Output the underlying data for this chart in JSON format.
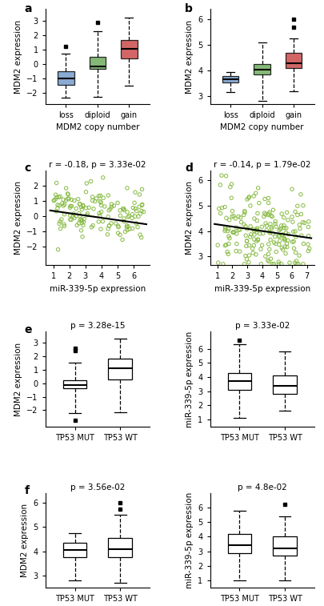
{
  "panel_a": {
    "xlabel": "MDM2 copy number",
    "ylabel": "MDM2 expression",
    "categories": [
      "loss",
      "diploid",
      "gain"
    ],
    "colors": [
      "#7099c8",
      "#6aaa5a",
      "#c84444"
    ],
    "boxes": [
      {
        "q1": -1.45,
        "median": -1.05,
        "q3": -0.55,
        "whislo": -2.35,
        "whishi": 0.7,
        "fliers": [
          1.2
        ]
      },
      {
        "q1": -0.35,
        "median": -0.2,
        "q3": 0.5,
        "whislo": -2.3,
        "whishi": 2.25,
        "fliers": [
          2.9
        ]
      },
      {
        "q1": 0.35,
        "median": 1.05,
        "q3": 1.65,
        "whislo": -1.5,
        "whishi": 3.2,
        "fliers": []
      }
    ],
    "ylim": [
      -2.8,
      3.8
    ],
    "yticks": [
      -2,
      -1,
      0,
      1,
      2,
      3
    ]
  },
  "panel_b": {
    "xlabel": "MDM2 copy number",
    "ylabel": "MDM2 expression",
    "categories": [
      "loss",
      "diploid",
      "gain"
    ],
    "colors": [
      "#7099c8",
      "#6aaa5a",
      "#c84444"
    ],
    "boxes": [
      {
        "q1": 3.55,
        "median": 3.65,
        "q3": 3.8,
        "whislo": 3.15,
        "whishi": 3.95,
        "fliers": []
      },
      {
        "q1": 3.85,
        "median": 4.05,
        "q3": 4.25,
        "whislo": 2.82,
        "whishi": 5.1,
        "fliers": []
      },
      {
        "q1": 4.1,
        "median": 4.3,
        "q3": 4.7,
        "whislo": 3.2,
        "whishi": 5.25,
        "fliers": [
          6.0,
          5.7
        ]
      }
    ],
    "ylim": [
      2.7,
      6.4
    ],
    "yticks": [
      3.0,
      4.0,
      5.0,
      6.0
    ]
  },
  "panel_c": {
    "title": "r = -0.18, p = 3.33e-02",
    "xlabel": "miR-339-5p expression",
    "ylabel": "MDM2 expression",
    "xlim": [
      0.5,
      7.0
    ],
    "ylim": [
      -3.2,
      3.0
    ],
    "xticks": [
      1,
      2,
      3,
      4,
      5,
      6
    ],
    "yticks": [
      -2,
      -1,
      0,
      1,
      2
    ],
    "line_x": [
      0.8,
      6.8
    ],
    "line_y": [
      0.38,
      -0.52
    ],
    "dot_color": "#aad66a",
    "dot_edge": "#88bb44"
  },
  "panel_d": {
    "title": "r = -0.14, p = 1.79e-02",
    "xlabel": "miR-339-5p expression",
    "ylabel": "MDM2 expression",
    "xlim": [
      0.5,
      7.5
    ],
    "ylim": [
      2.65,
      6.4
    ],
    "xticks": [
      1,
      2,
      3,
      4,
      5,
      6,
      7
    ],
    "yticks": [
      3.0,
      4.0,
      5.0,
      6.0
    ],
    "line_x": [
      0.8,
      7.3
    ],
    "line_y": [
      4.28,
      3.72
    ],
    "dot_color": "#aad66a",
    "dot_edge": "#88bb44"
  },
  "panel_e_left": {
    "title": "p = 3.28e-15",
    "xlabel": "",
    "ylabel": "MDM2 expression",
    "categories": [
      "TP53 MUT",
      "TP53 WT"
    ],
    "boxes": [
      {
        "q1": -0.35,
        "median": -0.15,
        "q3": 0.2,
        "whislo": -2.2,
        "whishi": 1.5,
        "fliers": [
          2.4,
          2.6,
          -2.75
        ]
      },
      {
        "q1": 0.3,
        "median": 1.1,
        "q3": 1.8,
        "whislo": -2.15,
        "whishi": 3.3,
        "fliers": []
      }
    ],
    "ylim": [
      -3.2,
      3.8
    ],
    "yticks": [
      -2,
      -1,
      0,
      1,
      2,
      3
    ]
  },
  "panel_e_right": {
    "title": "p = 3.33e-02",
    "xlabel": "",
    "ylabel": "miR-339-5p expression",
    "categories": [
      "TP53 MUT",
      "TP53 WT"
    ],
    "boxes": [
      {
        "q1": 3.1,
        "median": 3.7,
        "q3": 4.3,
        "whislo": 1.1,
        "whishi": 6.3,
        "fliers": [
          6.6
        ]
      },
      {
        "q1": 2.8,
        "median": 3.4,
        "q3": 4.1,
        "whislo": 1.6,
        "whishi": 5.8,
        "fliers": []
      }
    ],
    "ylim": [
      0.5,
      7.2
    ],
    "yticks": [
      1,
      2,
      3,
      4,
      5,
      6
    ]
  },
  "panel_f_left": {
    "title": "p = 3.56e-02",
    "xlabel": "",
    "ylabel": "MDM2 expression",
    "categories": [
      "TP53 MUT",
      "TP53 WT"
    ],
    "boxes": [
      {
        "q1": 3.75,
        "median": 4.05,
        "q3": 4.35,
        "whislo": 2.82,
        "whishi": 4.75,
        "fliers": []
      },
      {
        "q1": 3.75,
        "median": 4.1,
        "q3": 4.55,
        "whislo": 2.72,
        "whishi": 5.5,
        "fliers": [
          6.0,
          5.75
        ]
      }
    ],
    "ylim": [
      2.5,
      6.4
    ],
    "yticks": [
      3.0,
      4.0,
      5.0,
      6.0
    ]
  },
  "panel_f_right": {
    "title": "p = 4.8e-02",
    "xlabel": "",
    "ylabel": "miR-339-5p expression",
    "categories": [
      "TP53 MUT",
      "TP53 WT"
    ],
    "boxes": [
      {
        "q1": 2.9,
        "median": 3.4,
        "q3": 4.2,
        "whislo": 1.0,
        "whishi": 5.8,
        "fliers": []
      },
      {
        "q1": 2.7,
        "median": 3.2,
        "q3": 4.0,
        "whislo": 1.0,
        "whishi": 5.4,
        "fliers": [
          6.2
        ]
      }
    ],
    "ylim": [
      0.5,
      7.0
    ],
    "yticks": [
      1,
      2,
      3,
      4,
      5,
      6
    ]
  },
  "n_points_c": 150,
  "n_points_d": 200,
  "scatter_seed_c": 42,
  "scatter_seed_d": 123
}
